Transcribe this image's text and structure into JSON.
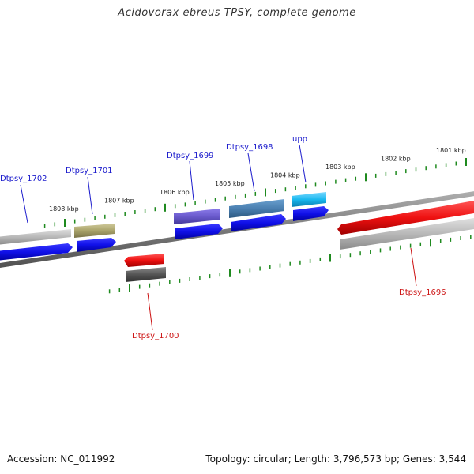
{
  "title": "Acidovorax ebreus TPSY, complete genome",
  "footer": {
    "accession": "Accession: NC_011992",
    "summary": "Topology: circular; Length: 3,796,573 bp; Genes: 3,544"
  },
  "colors": {
    "backbone": "#8a8a8a",
    "ticks": "#1f8a1f",
    "forward_label": "#1a1acc",
    "reverse_label": "#cc1111",
    "gene_blue": "#1010e8",
    "gene_red": "#ee1111",
    "gene_gray": "#b8b8b8",
    "gene_olive": "#a9a36a",
    "gene_purple": "#6a5acd",
    "gene_steelblue": "#4a7fb0",
    "gene_cyan": "#19b8ef",
    "gene_darkgray": "#555555"
  },
  "scale": {
    "upper_ticks": [
      "1808 kbp",
      "1807 kbp",
      "1806 kbp",
      "1805 kbp",
      "1804 kbp",
      "1803 kbp",
      "1802 kbp",
      "1801 kbp"
    ]
  },
  "genes": {
    "forward_labels": [
      "Dtpsy_1702",
      "Dtpsy_1701",
      "Dtpsy_1699",
      "Dtpsy_1698",
      "upp"
    ],
    "reverse_labels": [
      "Dtpsy_1700",
      "Dtpsy_1696"
    ]
  }
}
